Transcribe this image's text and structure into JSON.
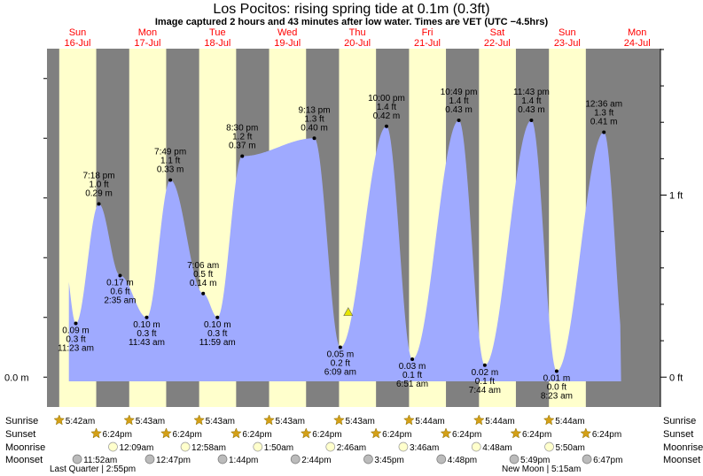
{
  "header": {
    "title": "Los Pocitos: rising  spring tide at 0.1m (0.3ft)",
    "subtitle": "Image captured 2 hours and 43 minutes after low water. Times are VET (UTC −4.5hrs)"
  },
  "colors": {
    "night": "#808080",
    "day": "#ffffcc",
    "water": "#9faaff",
    "day_label": "#ff0000",
    "sun_marker": "#d4a017",
    "moonrise_marker": "#ffffcc",
    "moonset_marker": "#bbbbbb"
  },
  "chart_data": {
    "type": "area",
    "x_range": [
      "2024-07-16 01:30",
      "2024-07-24 20:00"
    ],
    "y_left": {
      "unit": "m",
      "range": [
        -0.05,
        0.55
      ],
      "labeled_ticks": [
        {
          "value": 0.0,
          "label": "0.0 m"
        }
      ]
    },
    "y_right": {
      "unit": "ft",
      "labeled_ticks": [
        {
          "value": 0,
          "label": "0 ft"
        },
        {
          "value": 1,
          "label": "1 ft"
        }
      ]
    },
    "days": [
      {
        "name": "Sun",
        "date": "16-Jul",
        "sunrise": "5:42am",
        "sunset": "6:24pm"
      },
      {
        "name": "Mon",
        "date": "17-Jul",
        "sunrise": "5:43am",
        "sunset": "6:24pm"
      },
      {
        "name": "Tue",
        "date": "18-Jul",
        "sunrise": "5:43am",
        "sunset": "6:24pm"
      },
      {
        "name": "Wed",
        "date": "19-Jul",
        "sunrise": "5:43am",
        "sunset": "6:24pm"
      },
      {
        "name": "Thu",
        "date": "20-Jul",
        "sunrise": "5:43am",
        "sunset": "6:24pm"
      },
      {
        "name": "Fri",
        "date": "21-Jul",
        "sunrise": "5:44am",
        "sunset": "6:24pm"
      },
      {
        "name": "Sat",
        "date": "22-Jul",
        "sunrise": "5:44am",
        "sunset": "6:24pm"
      },
      {
        "name": "Sun",
        "date": "23-Jul",
        "sunrise": "5:44am",
        "sunset": "6:24pm"
      },
      {
        "name": "Mon",
        "date": "24-Jul"
      }
    ],
    "tide_events": [
      {
        "type": "low",
        "time": "11:23 am",
        "m": "0.09 m",
        "ft": "0.3 ft",
        "value": 0.09
      },
      {
        "type": "high",
        "time": "7:18 pm",
        "m": "0.29 m",
        "ft": "1.0 ft",
        "value": 0.29
      },
      {
        "type": "low",
        "time": "2:35 am",
        "m": "0.17 m",
        "ft": "0.6 ft",
        "value": 0.17
      },
      {
        "type": "low",
        "time": "11:43 am",
        "m": "0.10 m",
        "ft": "0.3 ft",
        "value": 0.1
      },
      {
        "type": "high",
        "time": "7:49 pm",
        "m": "0.33 m",
        "ft": "1.1 ft",
        "value": 0.33
      },
      {
        "type": "high",
        "time": "7:06 am",
        "m": "0.14 m",
        "ft": "0.5 ft",
        "value": 0.14
      },
      {
        "type": "low",
        "time": "11:59 am",
        "m": "0.10 m",
        "ft": "0.3 ft",
        "value": 0.1
      },
      {
        "type": "high",
        "time": "8:30 pm",
        "m": "0.37 m",
        "ft": "1.2 ft",
        "value": 0.37
      },
      {
        "type": "high",
        "time": "9:13 pm",
        "m": "0.40 m",
        "ft": "1.3 ft",
        "value": 0.4
      },
      {
        "type": "low",
        "time": "6:09 am",
        "m": "0.05 m",
        "ft": "0.2 ft",
        "value": 0.05
      },
      {
        "type": "high",
        "time": "10:00 pm",
        "m": "0.42 m",
        "ft": "1.4 ft",
        "value": 0.42
      },
      {
        "type": "low",
        "time": "6:51 am",
        "m": "0.03 m",
        "ft": "0.1 ft",
        "value": 0.03
      },
      {
        "type": "high",
        "time": "10:49 pm",
        "m": "0.43 m",
        "ft": "1.4 ft",
        "value": 0.43
      },
      {
        "type": "low",
        "time": "7:44 am",
        "m": "0.02 m",
        "ft": "0.1 ft",
        "value": 0.02
      },
      {
        "type": "high",
        "time": "11:43 pm",
        "m": "0.43 m",
        "ft": "1.4 ft",
        "value": 0.43
      },
      {
        "type": "low",
        "time": "8:23 am",
        "m": "0.01 m",
        "ft": "0.0 ft",
        "value": 0.01
      },
      {
        "type": "high",
        "time": "12:36 am",
        "m": "0.41 m",
        "ft": "1.3 ft",
        "value": 0.41
      }
    ],
    "current_marker": {
      "time": "2024-07-20 08:52",
      "value": 0.1
    },
    "row_labels": [
      "Sunrise",
      "Sunset",
      "Moonrise",
      "Moonset"
    ],
    "moonrise": [
      "12:09am",
      "12:58am",
      "1:50am",
      "2:46am",
      "3:46am",
      "4:48am",
      "5:50am"
    ],
    "moonset": [
      "11:52am",
      "12:47pm",
      "1:44pm",
      "2:44pm",
      "3:45pm",
      "4:48pm",
      "5:49pm",
      "6:47pm"
    ],
    "moon_phases": [
      "Last Quarter | 2:55pm",
      "New Moon | 5:15am"
    ]
  }
}
